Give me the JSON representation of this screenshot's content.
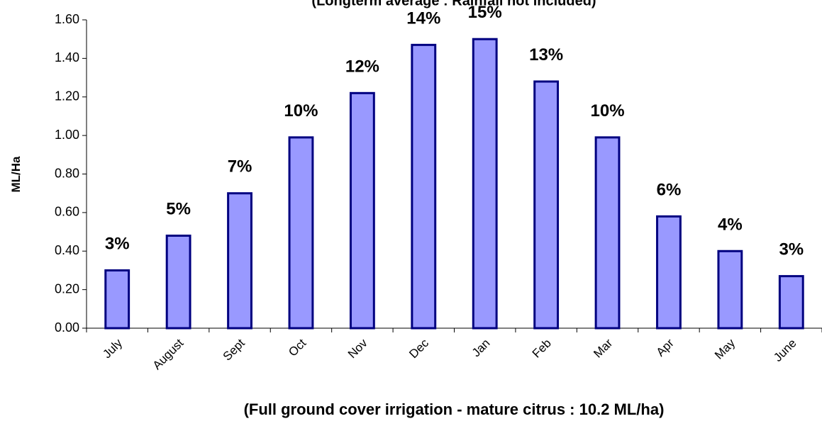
{
  "chart_data": {
    "type": "bar",
    "subtitle": "(Longterm average : Rainfall not included)",
    "x_label": "(Full ground cover irrigation - mature citrus : 10.2 ML/ha)",
    "y_label": "ML/Ha",
    "categories": [
      "July",
      "August",
      "Sept",
      "Oct",
      "Nov",
      "Dec",
      "Jan",
      "Feb",
      "Mar",
      "Apr",
      "May",
      "June"
    ],
    "values": [
      0.3,
      0.48,
      0.7,
      0.99,
      1.22,
      1.47,
      1.5,
      1.28,
      0.99,
      0.58,
      0.4,
      0.27
    ],
    "data_labels": [
      "3%",
      "5%",
      "7%",
      "10%",
      "12%",
      "14%",
      "15%",
      "13%",
      "10%",
      "6%",
      "4%",
      "3%"
    ],
    "color": "#9999ff",
    "edge_color": "#000080",
    "ylim": [
      0,
      1.6
    ],
    "yticks": [
      {
        "value": 0,
        "label": "0.00"
      },
      {
        "value": 0.2,
        "label": "0.20"
      },
      {
        "value": 0.4,
        "label": "0.40"
      },
      {
        "value": 0.6,
        "label": "0.60"
      },
      {
        "value": 0.8,
        "label": "0.80"
      },
      {
        "value": 1.0,
        "label": "1.00"
      },
      {
        "value": 1.2,
        "label": "1.20"
      },
      {
        "value": 1.4,
        "label": "1.40"
      },
      {
        "value": 1.6,
        "label": "1.60"
      }
    ]
  }
}
